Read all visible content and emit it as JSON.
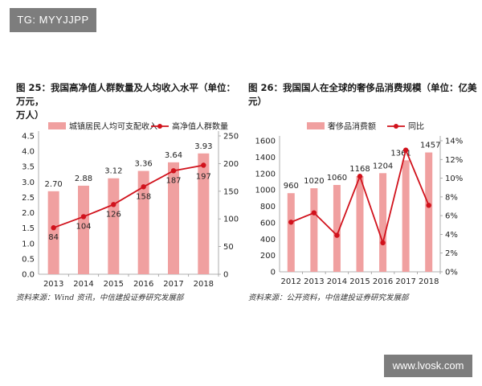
{
  "watermark": {
    "top_left": "TG: MYYJJPP",
    "bottom_right": "www.lvosk.com"
  },
  "colors": {
    "bar": "#f0a0a0",
    "line": "#d1121c"
  },
  "charts": [
    {
      "title_line1": "图 25：我国高净值人群数量及人均收入水平（单位：万元，",
      "title_line2": "万人）",
      "source": "资料来源：Wind 资讯，中信建投证券研究发展部",
      "legend": {
        "bar": "城镇居民人均可支配收入",
        "line": "高净值人群数量"
      },
      "left_ticks": [
        "4.5",
        "4.0",
        "3.5",
        "3.0",
        "2.5",
        "2.0",
        "1.5",
        "1.0",
        "0.5",
        "0.0"
      ],
      "right_ticks": [
        "250",
        "200",
        "150",
        "100",
        "50",
        "0"
      ]
    },
    {
      "title_line1": "图 26：我国国人在全球的奢侈品消费规模（单位：亿美元）",
      "source": "资料来源：公开资料，中信建投证券研究发展部",
      "legend": {
        "bar": "奢侈品消费额",
        "line": "同比"
      },
      "left_ticks": [
        "1600",
        "1400",
        "1200",
        "1000",
        "800",
        "600",
        "400",
        "200",
        "0"
      ],
      "right_ticks": [
        "14%",
        "12%",
        "10%",
        "8%",
        "6%",
        "4%",
        "2%",
        "0%"
      ]
    }
  ],
  "chart_data": [
    {
      "type": "bar",
      "categories": [
        "2013",
        "2014",
        "2015",
        "2016",
        "2017",
        "2018"
      ],
      "series": [
        {
          "name": "城镇居民人均可支配收入",
          "type": "bar",
          "axis": "left",
          "values": [
            2.7,
            2.88,
            3.12,
            3.36,
            3.64,
            3.93
          ],
          "labels": [
            "2.70",
            "2.88",
            "3.12",
            "3.36",
            "3.64",
            "3.93"
          ]
        },
        {
          "name": "高净值人群数量",
          "type": "line",
          "axis": "right",
          "values": [
            84,
            104,
            126,
            158,
            187,
            197
          ],
          "labels": [
            "84",
            "104",
            "126",
            "158",
            "187",
            "197"
          ]
        }
      ],
      "ylim_left": [
        0,
        4.5
      ],
      "ylim_right": [
        0,
        250
      ],
      "legend_position": "top"
    },
    {
      "type": "bar",
      "categories": [
        "2012",
        "2013",
        "2014",
        "2015",
        "2016",
        "2017",
        "2018"
      ],
      "series": [
        {
          "name": "奢侈品消费额",
          "type": "bar",
          "axis": "left",
          "values": [
            960,
            1020,
            1060,
            1168,
            1204,
            1361,
            1457
          ],
          "labels": [
            "960",
            "1020",
            "1060",
            "1168",
            "1204",
            "1361",
            "1457"
          ]
        },
        {
          "name": "同比",
          "type": "line",
          "axis": "right",
          "values": [
            0.053,
            0.063,
            0.039,
            0.102,
            0.031,
            0.13,
            0.071
          ]
        }
      ],
      "ylim_left": [
        0,
        1600
      ],
      "ylim_right": [
        0,
        0.14
      ],
      "legend_position": "top"
    }
  ]
}
